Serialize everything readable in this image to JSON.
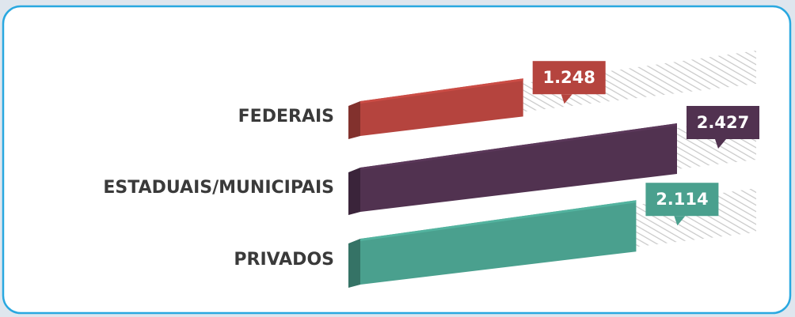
{
  "chart_data": {
    "type": "bar3d",
    "categories": [
      "FEDERAIS",
      "ESTADUAIS/MUNICIPAIS",
      "PRIVADOS"
    ],
    "values": [
      1248,
      2427,
      2114
    ],
    "value_labels": [
      "1.248",
      "2.427",
      "2.114"
    ],
    "colors": [
      "#b5443e",
      "#513250",
      "#4aa08e"
    ],
    "orientation": "horizontal"
  }
}
